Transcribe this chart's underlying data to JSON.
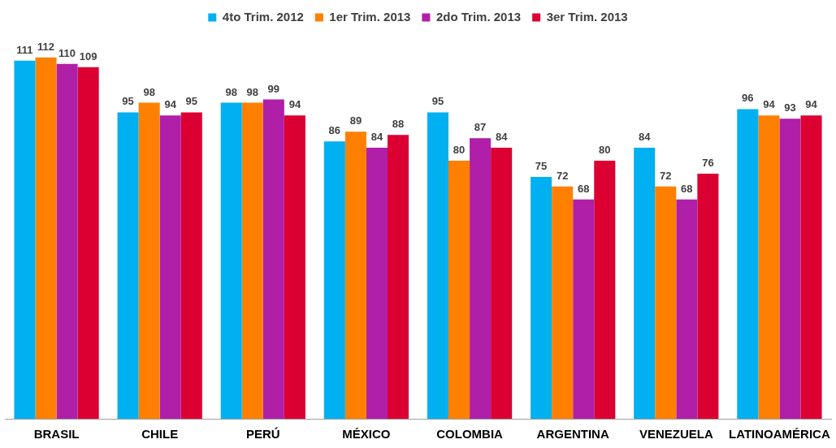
{
  "chart_data": {
    "type": "bar",
    "categories": [
      "BRASIL",
      "CHILE",
      "PERÚ",
      "MÉXICO",
      "COLOMBIA",
      "ARGENTINA",
      "VENEZUELA",
      "LATINOAMÉRICA"
    ],
    "series": [
      {
        "name": "4to Trim. 2012",
        "color": "#00b0f0",
        "values": [
          111,
          95,
          98,
          86,
          95,
          75,
          84,
          96
        ]
      },
      {
        "name": "1er Trim. 2013",
        "color": "#ff8000",
        "values": [
          112,
          98,
          98,
          89,
          80,
          72,
          72,
          94
        ]
      },
      {
        "name": "2do Trim. 2013",
        "color": "#b01fa8",
        "values": [
          110,
          94,
          99,
          84,
          87,
          68,
          68,
          93
        ]
      },
      {
        "name": "3er Trim. 2013",
        "color": "#dc0032",
        "values": [
          109,
          95,
          94,
          88,
          84,
          80,
          76,
          94
        ]
      }
    ],
    "data_labels": true,
    "legend": "top",
    "grid": false,
    "tick_labels": "x"
  }
}
